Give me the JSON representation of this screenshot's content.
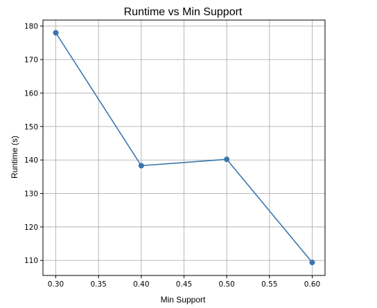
{
  "chart_data": {
    "type": "line",
    "title": "Runtime vs Min Support",
    "xlabel": "Min Support",
    "ylabel": "Runtime (s)",
    "x": [
      0.3,
      0.4,
      0.5,
      0.6
    ],
    "series": [
      {
        "values": [
          178.0,
          138.3,
          140.2,
          109.4
        ],
        "color": "#3a75ad",
        "marker": "circle"
      }
    ],
    "xlim": [
      0.285,
      0.615
    ],
    "ylim": [
      105.5,
      181.8
    ],
    "xticks": [
      0.3,
      0.35,
      0.4,
      0.45,
      0.5,
      0.55,
      0.6
    ],
    "xtick_labels": [
      "0.30",
      "0.35",
      "0.40",
      "0.45",
      "0.50",
      "0.55",
      "0.60"
    ],
    "yticks": [
      110,
      120,
      130,
      140,
      150,
      160,
      170,
      180
    ],
    "ytick_labels": [
      "110",
      "120",
      "130",
      "140",
      "150",
      "160",
      "170",
      "180"
    ],
    "grid": true,
    "grid_color": "#b0b0b0",
    "axes_color": "#000000"
  }
}
